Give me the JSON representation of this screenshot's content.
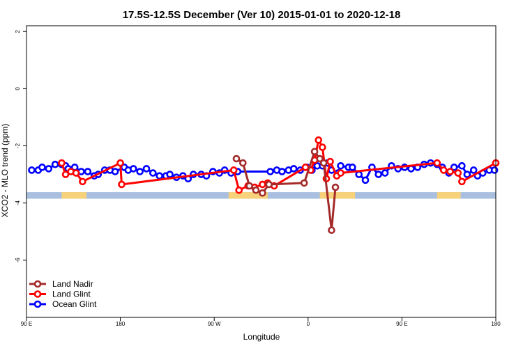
{
  "chart_data": {
    "type": "line",
    "title": "17.5S-12.5S December (Ver 10)   2015-01-01 to 2020-12-18",
    "xlabel": "Longitude",
    "ylabel": "XCO2 - MLO trend (ppm)",
    "xlim": [
      0,
      360
    ],
    "ylim": [
      -8,
      2.2
    ],
    "x_ticks": [
      {
        "value": 0,
        "label": "90 E"
      },
      {
        "value": 72,
        "label": "180"
      },
      {
        "value": 144,
        "label": "90 W"
      },
      {
        "value": 216,
        "label": "0"
      },
      {
        "value": 288,
        "label": "90 E"
      },
      {
        "value": 360,
        "label": "180"
      }
    ],
    "y_ticks": [
      {
        "value": 2,
        "label": "2"
      },
      {
        "value": 0,
        "label": "0"
      },
      {
        "value": -2,
        "label": "-2"
      },
      {
        "value": -4,
        "label": "-4"
      },
      {
        "value": -6,
        "label": "-6"
      }
    ],
    "grid": false,
    "legend_position": "bottom-left",
    "land_band": {
      "y_range": [
        -3.85,
        -3.62
      ],
      "ocean_color": "#a9bfdf",
      "land_color": "#f7d27a",
      "land_x_ranges": [
        [
          27,
          46
        ],
        [
          155,
          185
        ],
        [
          225,
          252
        ],
        [
          315,
          333
        ]
      ]
    },
    "series": [
      {
        "name": "Land Nadir",
        "color": "#a52a2a",
        "x": [
          161,
          166,
          171,
          176,
          181,
          186,
          213,
          221,
          225,
          228,
          234,
          237
        ],
        "y": [
          -2.45,
          -2.6,
          -3.4,
          -3.55,
          -3.65,
          -3.35,
          -3.3,
          -2.2,
          -2.45,
          -2.6,
          -4.95,
          -3.45
        ]
      },
      {
        "name": "Land Glint",
        "color": "#ff0000",
        "x": [
          27,
          30,
          34,
          38,
          43,
          72,
          73,
          159,
          163,
          170,
          175,
          181,
          185,
          190,
          214,
          218,
          221,
          224,
          227,
          230,
          233,
          238,
          241,
          315,
          320,
          325,
          331,
          334,
          360
        ],
        "y": [
          -2.6,
          -3.0,
          -2.9,
          -2.95,
          -3.25,
          -2.6,
          -3.35,
          -2.85,
          -3.55,
          -3.4,
          -3.45,
          -3.35,
          -3.3,
          -3.4,
          -2.75,
          -2.85,
          -2.5,
          -1.8,
          -2.05,
          -3.15,
          -2.55,
          -3.05,
          -2.95,
          -2.6,
          -2.85,
          -2.9,
          -2.95,
          -3.25,
          -2.6
        ]
      },
      {
        "name": "Ocean Glint",
        "color": "#0000ff",
        "x": [
          4,
          9,
          12,
          17,
          22,
          27,
          30,
          32,
          37,
          42,
          47,
          52,
          55,
          60,
          64,
          68,
          75,
          78,
          82,
          87,
          92,
          97,
          102,
          107,
          110,
          115,
          120,
          124,
          128,
          134,
          138,
          143,
          148,
          152,
          157,
          162,
          187,
          192,
          196,
          201,
          205,
          210,
          215,
          219,
          223,
          227,
          231,
          234,
          239,
          241,
          247,
          250,
          255,
          260,
          265,
          270,
          275,
          280,
          285,
          290,
          295,
          300,
          305,
          310,
          315,
          319,
          324,
          328,
          334,
          338,
          343,
          346,
          350,
          355,
          359
        ],
        "y": [
          -2.85,
          -2.85,
          -2.75,
          -2.8,
          -2.65,
          -2.65,
          -2.7,
          -2.8,
          -2.75,
          -2.9,
          -2.9,
          -3.05,
          -3.0,
          -2.85,
          -2.85,
          -2.9,
          -2.75,
          -2.85,
          -2.8,
          -2.9,
          -2.8,
          -2.95,
          -3.05,
          -3.05,
          -3.0,
          -3.1,
          -3.05,
          -3.15,
          -3.0,
          -3.0,
          -3.05,
          -2.9,
          -2.95,
          -2.85,
          -2.95,
          -2.9,
          -2.9,
          -2.85,
          -2.9,
          -2.85,
          -2.8,
          -2.85,
          -2.75,
          -2.85,
          -2.7,
          -2.7,
          -2.6,
          -2.85,
          -2.95,
          -2.7,
          -2.75,
          -2.75,
          -3.0,
          -3.2,
          -2.75,
          -3.0,
          -2.95,
          -2.7,
          -2.8,
          -2.75,
          -2.8,
          -2.75,
          -2.65,
          -2.6,
          -2.65,
          -2.75,
          -2.95,
          -2.75,
          -2.7,
          -3.0,
          -2.85,
          -3.05,
          -2.95,
          -2.85,
          -2.85
        ]
      }
    ]
  }
}
